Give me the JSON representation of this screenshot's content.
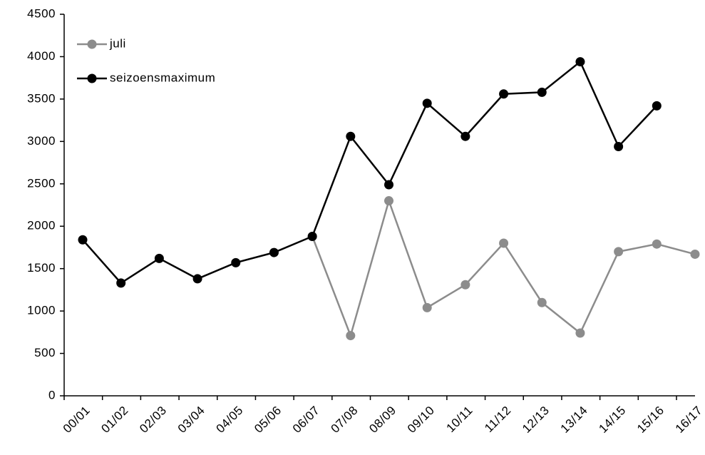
{
  "chart_data": {
    "type": "line",
    "categories": [
      "00/01",
      "01/02",
      "02/03",
      "03/04",
      "04/05",
      "05/06",
      "06/07",
      "07/08",
      "08/09",
      "09/10",
      "10/11",
      "11/12",
      "12/13",
      "13/14",
      "14/15",
      "15/16",
      "16/17"
    ],
    "series": [
      {
        "name": "juli",
        "color": "#8c8c8c",
        "values": [
          null,
          null,
          null,
          null,
          null,
          null,
          1880,
          710,
          2300,
          1040,
          1310,
          1800,
          1100,
          740,
          1700,
          1790,
          1670
        ]
      },
      {
        "name": "seizoensmaximum",
        "color": "#000000",
        "values": [
          1840,
          1330,
          1620,
          1380,
          1570,
          1690,
          1880,
          3060,
          2490,
          3450,
          3060,
          3560,
          3580,
          3940,
          2940,
          3420,
          null
        ]
      }
    ],
    "ylim": [
      0,
      4500
    ],
    "yticks": [
      0,
      500,
      1000,
      1500,
      2000,
      2500,
      3000,
      3500,
      4000,
      4500
    ],
    "legend": "upper left",
    "grid": false
  }
}
